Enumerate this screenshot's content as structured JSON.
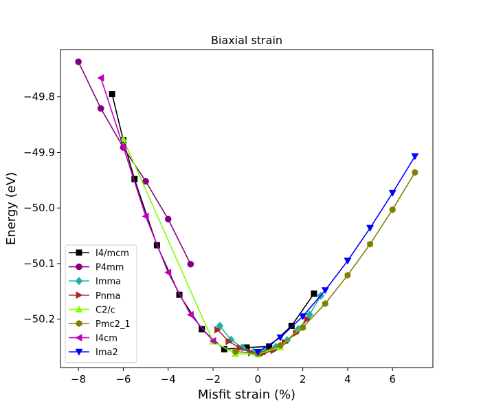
{
  "chart_data": {
    "type": "line",
    "title": "Biaxial strain",
    "xlabel": "Misfit strain (%)",
    "ylabel": "Energy (eV)",
    "xlim": [
      -8.8,
      7.8
    ],
    "ylim": [
      -50.287,
      -49.715
    ],
    "xticks": [
      -8,
      -6,
      -4,
      -2,
      0,
      2,
      4,
      6
    ],
    "yticks": [
      -49.8,
      -49.9,
      -50.0,
      -50.1,
      -50.2
    ],
    "xtick_labels": [
      "−8",
      "−6",
      "−4",
      "−2",
      "0",
      "2",
      "4",
      "6"
    ],
    "ytick_labels": [
      "−49.8",
      "−49.9",
      "−50.0",
      "−50.1",
      "−50.2"
    ],
    "legend_position": "lower-left",
    "series": [
      {
        "name": "I4/mcm",
        "color": "#000000",
        "marker": "square",
        "x": [
          -6.5,
          -6.0,
          -5.5,
          -4.5,
          -3.5,
          -2.5,
          -1.5,
          -0.5,
          0.5,
          1.5,
          2.5
        ],
        "y": [
          -49.795,
          -49.878,
          -49.948,
          -50.067,
          -50.156,
          -50.218,
          -50.254,
          -50.251,
          -50.249,
          -50.212,
          -50.154
        ]
      },
      {
        "name": "P4mm",
        "color": "#800080",
        "marker": "circle",
        "x": [
          -8,
          -7,
          -6,
          -5,
          -4,
          -3
        ],
        "y": [
          -49.737,
          -49.821,
          -49.891,
          -49.952,
          -50.02,
          -50.101
        ]
      },
      {
        "name": "Imma",
        "color": "#20b2aa",
        "marker": "diamond",
        "x": [
          -1.7,
          -1.2,
          -0.7,
          -0.2,
          0.3,
          0.8,
          1.3,
          1.8,
          2.3,
          2.8
        ],
        "y": [
          -50.212,
          -50.237,
          -50.251,
          -50.259,
          -50.258,
          -50.25,
          -50.238,
          -50.218,
          -50.192,
          -50.158
        ]
      },
      {
        "name": "Pnma",
        "color": "#a52a2a",
        "marker": "triangle-right",
        "x": [
          -1.8,
          -1.3,
          -0.8,
          -0.3,
          0.2,
          0.7,
          1.2,
          1.7,
          2.2
        ],
        "y": [
          -50.219,
          -50.24,
          -50.252,
          -50.26,
          -50.262,
          -50.256,
          -50.242,
          -50.225,
          -50.2
        ]
      },
      {
        "name": "C2/c",
        "color": "#7fff00",
        "marker": "triangle-up",
        "x": [
          -6,
          -2,
          -1,
          0,
          1,
          2
        ],
        "y": [
          -49.876,
          -50.24,
          -50.262,
          -50.263,
          -50.25,
          -50.212
        ]
      },
      {
        "name": "Pmc2_1",
        "color": "#808000",
        "marker": "hexagon",
        "x": [
          -1,
          0,
          1,
          2,
          3,
          4,
          5,
          6,
          7
        ],
        "y": [
          -50.258,
          -50.262,
          -50.247,
          -50.215,
          -50.172,
          -50.121,
          -50.065,
          -50.003,
          -49.936
        ]
      },
      {
        "name": "I4cm",
        "color": "#bf00bf",
        "marker": "triangle-left",
        "x": [
          -7,
          -6,
          -5,
          -4,
          -3,
          -2
        ],
        "y": [
          -49.766,
          -49.89,
          -50.015,
          -50.116,
          -50.192,
          -50.239
        ]
      },
      {
        "name": "Ima2",
        "color": "#0000ff",
        "marker": "triangle-down",
        "x": [
          0,
          1,
          2,
          3,
          4,
          5,
          6,
          7
        ],
        "y": [
          -50.259,
          -50.233,
          -50.195,
          -50.148,
          -50.095,
          -50.036,
          -49.973,
          -49.907
        ]
      }
    ]
  }
}
